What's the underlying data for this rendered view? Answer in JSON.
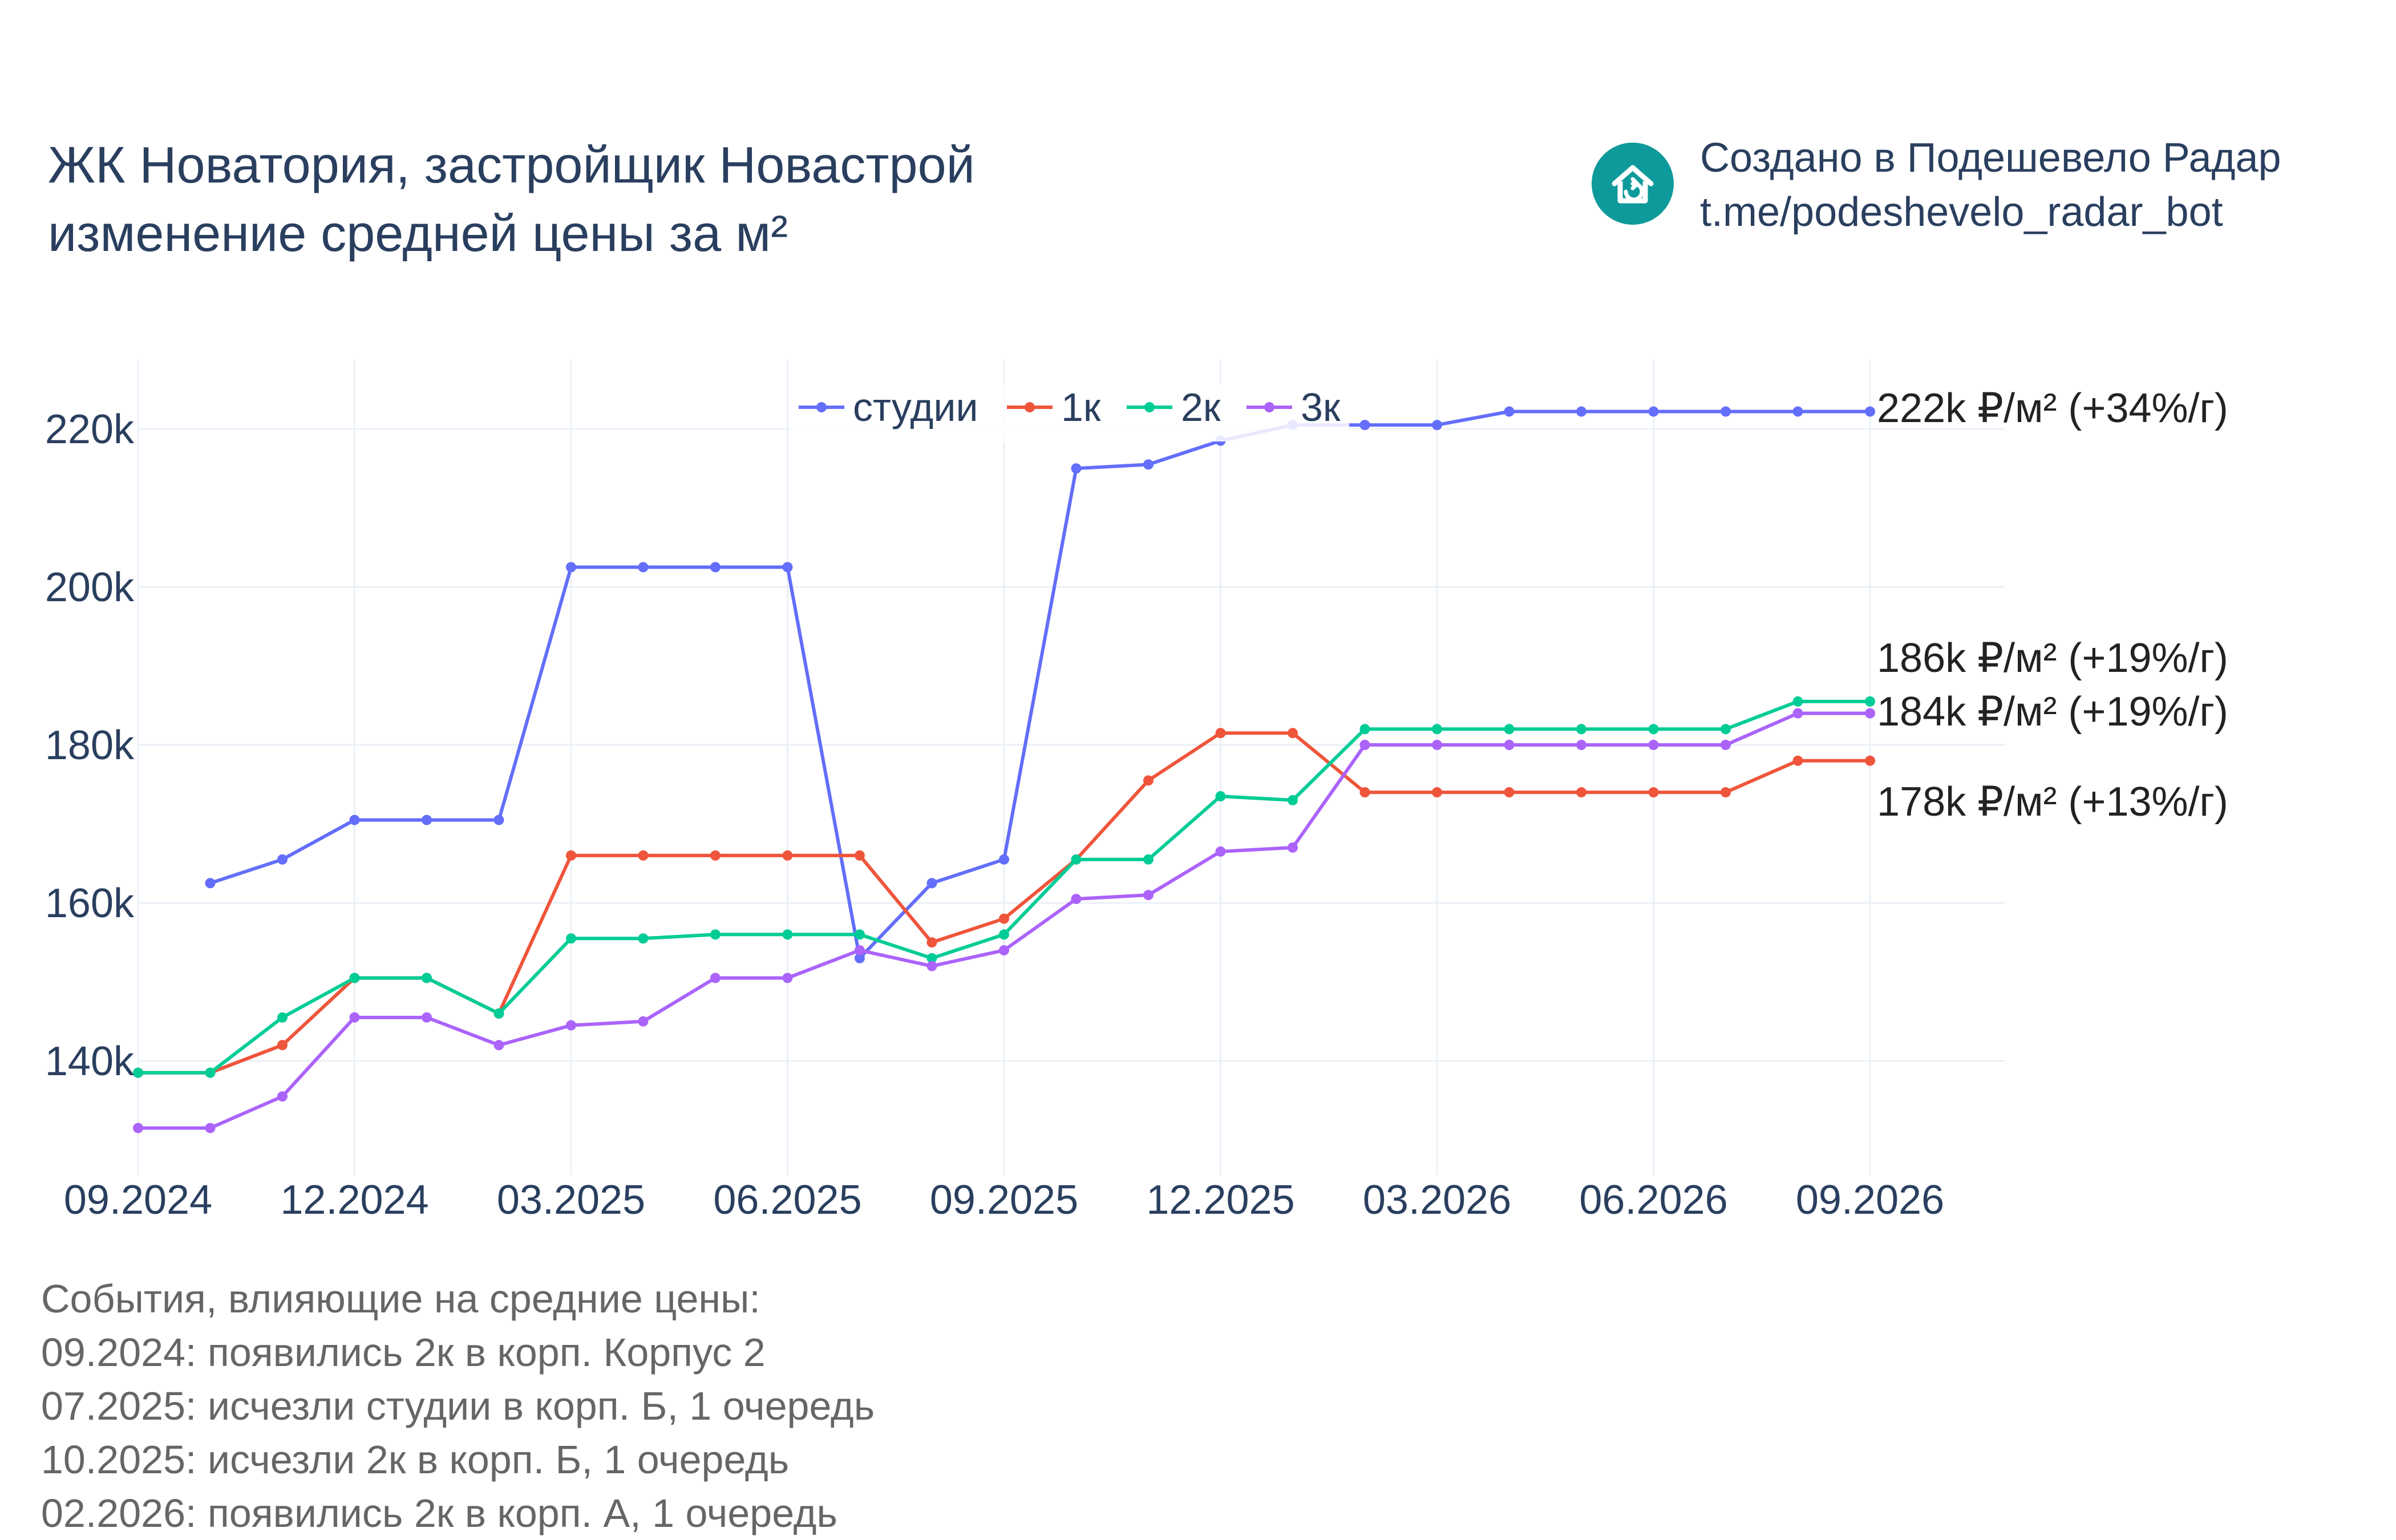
{
  "header": {
    "title_line1": "ЖК Новатория, застройщик Новастрой",
    "title_line2": "изменение средней цены за м²"
  },
  "brand": {
    "line1": "Создано в Подешевело Радар",
    "line2": "t.me/podeshevelo_radar_bot",
    "logo_icon": "house-refresh-icon",
    "logo_color": "#0e9a9a"
  },
  "events": {
    "heading": "События, влияющие на средние цены:",
    "items": [
      "09.2024: появились 2к в корп. Корпус 2",
      "07.2025: исчезли студии в корп. Б, 1 очередь",
      "10.2025: исчезли 2к в корп. Б, 1 очередь",
      "02.2026: появились 2к в корп. А, 1 очередь"
    ]
  },
  "chart_data": {
    "type": "line",
    "x": [
      "09.2024",
      "10.2024",
      "11.2024",
      "12.2024",
      "01.2025",
      "02.2025",
      "03.2025",
      "04.2025",
      "05.2025",
      "06.2025",
      "07.2025",
      "08.2025",
      "09.2025",
      "10.2025",
      "11.2025",
      "12.2025",
      "01.2026",
      "02.2026",
      "03.2026",
      "04.2026",
      "05.2026",
      "06.2026",
      "07.2026",
      "08.2026",
      "09.2026"
    ],
    "x_ticks": [
      "09.2024",
      "12.2024",
      "03.2025",
      "06.2025",
      "09.2025",
      "12.2025",
      "03.2026",
      "06.2026",
      "09.2026"
    ],
    "y_ticks": [
      "140k",
      "160k",
      "180k",
      "200k",
      "220k"
    ],
    "y_tick_values": [
      140000,
      160000,
      180000,
      200000,
      220000
    ],
    "ylim": [
      127000,
      229000
    ],
    "grid": true,
    "legend_position": "top-center",
    "series": [
      {
        "name": "студии",
        "color": "#636efa",
        "values": [
          null,
          162500,
          165500,
          170500,
          170500,
          170500,
          202500,
          202500,
          202500,
          202500,
          153000,
          162500,
          165500,
          215000,
          215500,
          218500,
          220500,
          220500,
          220500,
          222200,
          222200,
          222200,
          222200,
          222200,
          222200
        ],
        "end_label": "222k ₽/м² (+34%/г)"
      },
      {
        "name": "1к",
        "color": "#ef553b",
        "values": [
          138500,
          138500,
          142000,
          150500,
          150500,
          146000,
          166000,
          166000,
          166000,
          166000,
          166000,
          155000,
          158000,
          165500,
          175500,
          181500,
          181500,
          174000,
          174000,
          174000,
          174000,
          174000,
          174000,
          178000,
          178000
        ],
        "end_label": "178k ₽/м² (+13%/г)"
      },
      {
        "name": "2к",
        "color": "#00cc96",
        "values": [
          138500,
          138500,
          145500,
          150500,
          150500,
          146000,
          155500,
          155500,
          156000,
          156000,
          156000,
          153000,
          156000,
          165500,
          165500,
          173500,
          173000,
          182000,
          182000,
          182000,
          182000,
          182000,
          182000,
          185500,
          185500
        ],
        "end_label": "186k ₽/м² (+19%/г)"
      },
      {
        "name": "3к",
        "color": "#ab63fa",
        "values": [
          131500,
          131500,
          135500,
          145500,
          145500,
          142000,
          144500,
          145000,
          150500,
          150500,
          154000,
          152000,
          154000,
          160500,
          161000,
          166500,
          167000,
          180000,
          180000,
          180000,
          180000,
          180000,
          180000,
          184000,
          184000
        ],
        "end_label": "184k ₽/м² (+19%/г)"
      }
    ]
  }
}
